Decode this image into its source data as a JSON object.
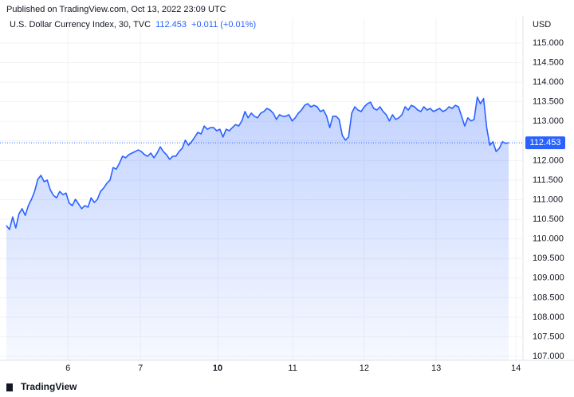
{
  "publisher": "Published on TradingView.com, Oct 13, 2022 23:09 UTC",
  "brand": "TradingView",
  "chart_data": {
    "type": "line",
    "title": "U.S. Dollar Currency Index, 30, TVC",
    "last_value": 112.453,
    "change": "+0.011 (+0.01%)",
    "y_axis_label": "USD",
    "color": "#2962ff",
    "grid": true,
    "xlim": [
      0,
      164.3
    ],
    "xticks": [
      {
        "value": 19.6,
        "label": "6"
      },
      {
        "value": 42.7,
        "label": "7"
      },
      {
        "value": 67.3,
        "label": "10"
      },
      {
        "value": 91.2,
        "label": "11"
      },
      {
        "value": 114.0,
        "label": "12"
      },
      {
        "value": 136.9,
        "label": "13"
      },
      {
        "value": 162.3,
        "label": "14"
      }
    ],
    "ylim": [
      106.9,
      115.65
    ],
    "yticks": [
      {
        "value": 107,
        "label": "107.000"
      },
      {
        "value": 107.5,
        "label": "107.500"
      },
      {
        "value": 108,
        "label": "108.000"
      },
      {
        "value": 108.5,
        "label": "108.500"
      },
      {
        "value": 109,
        "label": "109.000"
      },
      {
        "value": 109.5,
        "label": "109.500"
      },
      {
        "value": 110,
        "label": "110.000"
      },
      {
        "value": 110.5,
        "label": "110.500"
      },
      {
        "value": 111,
        "label": "111.000"
      },
      {
        "value": 111.5,
        "label": "111.500"
      },
      {
        "value": 112,
        "label": "112.000"
      },
      {
        "value": 112.5,
        "label": "112.500"
      },
      {
        "value": 113,
        "label": "113.000"
      },
      {
        "value": 113.5,
        "label": "113.500"
      },
      {
        "value": 114,
        "label": "114.000"
      },
      {
        "value": 114.5,
        "label": "114.500"
      },
      {
        "value": 115,
        "label": "115.000"
      }
    ],
    "x": [
      0,
      1,
      2,
      3,
      4,
      5,
      6,
      7,
      8,
      9,
      10,
      11,
      12,
      13,
      14,
      15,
      16,
      17,
      18,
      19,
      20,
      21,
      22,
      23,
      24,
      25,
      26,
      27,
      28,
      29,
      30,
      31,
      32,
      33,
      34,
      35,
      36,
      37,
      38,
      39,
      40,
      41,
      42,
      43,
      44,
      45,
      46,
      47,
      48,
      49,
      50,
      51,
      52,
      53,
      54,
      55,
      56,
      57,
      58,
      59,
      60,
      61,
      62,
      63,
      64,
      65,
      66,
      67,
      68,
      69,
      70,
      71,
      72,
      73,
      74,
      75,
      76,
      77,
      78,
      79,
      80,
      81,
      82,
      83,
      84,
      85,
      86,
      87,
      88,
      89,
      90,
      91,
      92,
      93,
      94,
      95,
      96,
      97,
      98,
      99,
      100,
      101,
      102,
      103,
      104,
      105,
      106,
      107,
      108,
      109,
      110,
      111,
      112,
      113,
      114,
      115,
      116,
      117,
      118,
      119,
      120,
      121,
      122,
      123,
      124,
      125,
      126,
      127,
      128,
      129,
      130,
      131,
      132,
      133,
      134,
      135,
      136,
      137,
      138,
      139,
      140,
      141,
      142,
      143,
      144,
      145,
      146,
      147,
      148,
      149,
      150,
      151,
      152,
      153,
      154,
      155,
      156,
      157,
      158,
      159,
      160
    ],
    "values": [
      110.34,
      110.24,
      110.56,
      110.28,
      110.64,
      110.77,
      110.6,
      110.85,
      111.01,
      111.21,
      111.52,
      111.62,
      111.46,
      111.5,
      111.25,
      111.11,
      111.05,
      111.21,
      111.13,
      111.17,
      110.91,
      110.85,
      111.01,
      110.89,
      110.77,
      110.85,
      110.81,
      111.05,
      110.93,
      111.01,
      111.21,
      111.3,
      111.42,
      111.5,
      111.82,
      111.78,
      111.93,
      112.11,
      112.07,
      112.15,
      112.19,
      112.23,
      112.27,
      112.23,
      112.15,
      112.11,
      112.19,
      112.07,
      112.19,
      112.35,
      112.23,
      112.15,
      112.03,
      112.11,
      112.11,
      112.23,
      112.31,
      112.52,
      112.39,
      112.48,
      112.6,
      112.72,
      112.68,
      112.88,
      112.8,
      112.84,
      112.84,
      112.76,
      112.8,
      112.6,
      112.8,
      112.76,
      112.84,
      112.92,
      112.88,
      113.01,
      113.25,
      113.09,
      113.21,
      113.13,
      113.09,
      113.21,
      113.25,
      113.33,
      113.29,
      113.21,
      113.05,
      113.17,
      113.13,
      113.13,
      113.17,
      113.01,
      113.09,
      113.21,
      113.29,
      113.41,
      113.45,
      113.37,
      113.41,
      113.37,
      113.25,
      113.29,
      113.13,
      112.84,
      113.13,
      113.13,
      113.05,
      112.64,
      112.52,
      112.6,
      113.21,
      113.37,
      113.29,
      113.25,
      113.37,
      113.45,
      113.49,
      113.33,
      113.29,
      113.37,
      113.25,
      113.17,
      113.01,
      113.17,
      113.05,
      113.09,
      113.17,
      113.37,
      113.29,
      113.41,
      113.37,
      113.29,
      113.25,
      113.37,
      113.29,
      113.33,
      113.25,
      113.29,
      113.33,
      113.25,
      113.29,
      113.37,
      113.33,
      113.41,
      113.37,
      113.13,
      112.88,
      113.09,
      113.01,
      113.05,
      113.62,
      113.45,
      113.58,
      112.84,
      112.39,
      112.48,
      112.23,
      112.31,
      112.48,
      112.44,
      112.453
    ]
  }
}
